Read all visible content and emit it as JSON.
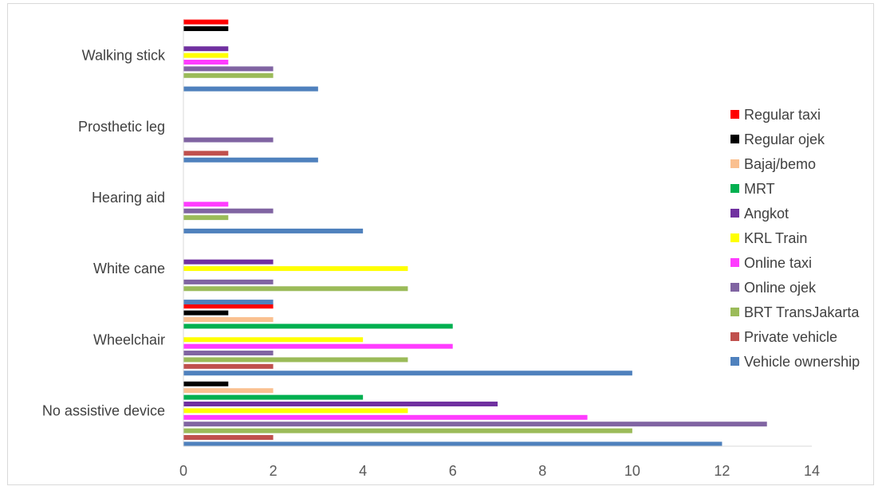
{
  "chart_data": {
    "type": "bar",
    "orientation": "horizontal",
    "categories": [
      "No assistive device",
      "Wheelchair",
      "White cane",
      "Hearing aid",
      "Prosthetic leg",
      "Walking stick"
    ],
    "series": [
      {
        "name": "Vehicle ownership",
        "color": "#4f81bd",
        "values": [
          12,
          10,
          2,
          4,
          3,
          3
        ]
      },
      {
        "name": "Private vehicle",
        "color": "#c0504d",
        "values": [
          2,
          2,
          0,
          0,
          1,
          0
        ]
      },
      {
        "name": "BRT TransJakarta",
        "color": "#9bbb59",
        "values": [
          10,
          5,
          5,
          1,
          0,
          2
        ]
      },
      {
        "name": "Online ojek",
        "color": "#8064a2",
        "values": [
          13,
          2,
          2,
          2,
          2,
          2
        ]
      },
      {
        "name": "Online taxi",
        "color": "#ff3cff",
        "values": [
          9,
          6,
          0,
          1,
          0,
          1
        ]
      },
      {
        "name": "KRL Train",
        "color": "#ffff00",
        "values": [
          5,
          4,
          5,
          0,
          0,
          1
        ]
      },
      {
        "name": "Angkot",
        "color": "#7030a0",
        "values": [
          7,
          0,
          2,
          0,
          0,
          1
        ]
      },
      {
        "name": "MRT",
        "color": "#00b050",
        "values": [
          4,
          6,
          0,
          0,
          0,
          0
        ]
      },
      {
        "name": "Bajaj/bemo",
        "color": "#fac090",
        "values": [
          2,
          2,
          0,
          0,
          0,
          0
        ]
      },
      {
        "name": "Regular ojek",
        "color": "#000000",
        "values": [
          1,
          1,
          0,
          0,
          0,
          1
        ]
      },
      {
        "name": "Regular taxi",
        "color": "#ff0000",
        "values": [
          0,
          2,
          0,
          0,
          0,
          1
        ]
      }
    ],
    "xlim": [
      0,
      14
    ],
    "xticks": [
      "0",
      "2",
      "4",
      "6",
      "8",
      "10",
      "12",
      "14"
    ],
    "grid": false,
    "legend_position": "right",
    "title": "",
    "xlabel": "",
    "ylabel": ""
  }
}
